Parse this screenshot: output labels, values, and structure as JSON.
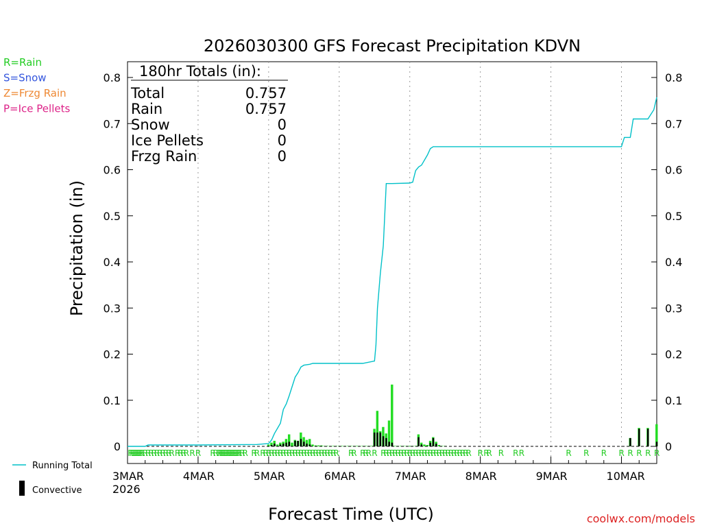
{
  "chart_data": {
    "type": "bar",
    "title": "2026030300 GFS Forecast Precipitation KDVN",
    "xlabel": "Forecast Time (UTC)",
    "ylabel": "Precipitation (in)",
    "ylim": [
      0,
      0.84
    ],
    "xlim_hours": [
      0,
      180
    ],
    "yticks": [
      0,
      0.1,
      0.2,
      0.3,
      0.4,
      0.5,
      0.6,
      0.7,
      0.8
    ],
    "ytick_labels": [
      "0",
      "0.1",
      "0.2",
      "0.3",
      "0.4",
      "0.5",
      "0.6",
      "0.7",
      "0.8"
    ],
    "xticks": [
      {
        "hour": 0,
        "label": "3MAR"
      },
      {
        "hour": 24,
        "label": "4MAR"
      },
      {
        "hour": 48,
        "label": "5MAR"
      },
      {
        "hour": 72,
        "label": "6MAR"
      },
      {
        "hour": 96,
        "label": "7MAR"
      },
      {
        "hour": 120,
        "label": "8MAR"
      },
      {
        "hour": 144,
        "label": "9MAR"
      },
      {
        "hour": 168,
        "label": "10MAR"
      }
    ],
    "year_label": "2026",
    "legend_ptype": [
      {
        "text": "R=Rain",
        "color": "#22cc22"
      },
      {
        "text": "S=Snow",
        "color": "#3355dd"
      },
      {
        "text": "Z=Frzg Rain",
        "color": "#ee8833"
      },
      {
        "text": "P=Ice Pellets",
        "color": "#dd2288"
      }
    ],
    "legend_lines": [
      {
        "text": "Running Total",
        "color": "#00c0c8"
      },
      {
        "text": "Convective",
        "color": "#000000"
      }
    ],
    "totals": {
      "header": "180hr Totals (in):",
      "rows": [
        {
          "label": "Total",
          "value": "0.757"
        },
        {
          "label": "Rain",
          "value": "0.757"
        },
        {
          "label": "Snow",
          "value": "0"
        },
        {
          "label": "Ice Pellets",
          "value": "0"
        },
        {
          "label": "Frzg Rain",
          "value": "0"
        }
      ]
    },
    "credit": "coolwx.com/models",
    "colors": {
      "total_bar": "#22dd22",
      "convective_bar": "#000000",
      "running_total": "#00c0c8",
      "ptype_marker": "#22cc22",
      "grid": "#999999",
      "credit": "#dd2222"
    },
    "series": [
      {
        "name": "Total precipitation (6-hourly bars)",
        "hours": [
          48,
          49,
          50,
          51,
          52,
          53,
          54,
          55,
          56,
          57,
          58,
          59,
          60,
          61,
          62,
          63,
          64,
          65,
          66,
          67,
          68,
          69,
          70,
          71,
          72,
          73,
          74,
          75,
          76,
          77,
          78,
          79,
          80,
          81,
          82,
          83,
          84,
          85,
          86,
          87,
          88,
          89,
          90,
          91,
          92,
          93,
          94,
          95,
          96,
          97,
          98,
          99,
          100,
          101,
          102,
          103,
          104,
          105,
          106,
          107,
          108,
          171,
          174,
          177,
          180
        ],
        "values": [
          0.004,
          0.008,
          0.012,
          0.004,
          0.008,
          0.01,
          0.016,
          0.026,
          0.008,
          0.014,
          0.012,
          0.03,
          0.02,
          0.014,
          0.016,
          0.004,
          0.002,
          0.002,
          0.002,
          0.001,
          0.001,
          0.001,
          0.001,
          0.001,
          0.001,
          0.001,
          0.001,
          0.001,
          0.001,
          0.001,
          0.001,
          0.001,
          0.001,
          0.001,
          0.001,
          0.001,
          0.038,
          0.077,
          0.033,
          0.042,
          0.028,
          0.056,
          0.134,
          0.001,
          0.001,
          0.001,
          0.001,
          0.001,
          0.001,
          0.001,
          0.001,
          0.026,
          0.008,
          0.004,
          0.003,
          0.012,
          0.02,
          0.01,
          0.003,
          0.001,
          0.001,
          0.018,
          0.04,
          0.04,
          0.048
        ]
      },
      {
        "name": "Convective precipitation",
        "hours": [
          49,
          50,
          52,
          53,
          54,
          55,
          57,
          58,
          59,
          60,
          61,
          62,
          84,
          85,
          86,
          87,
          88,
          89,
          90,
          99,
          100,
          103,
          104,
          105,
          171,
          174,
          177,
          180
        ],
        "values": [
          0.003,
          0.006,
          0.004,
          0.006,
          0.008,
          0.01,
          0.012,
          0.012,
          0.016,
          0.01,
          0.006,
          0.004,
          0.03,
          0.03,
          0.03,
          0.022,
          0.018,
          0.01,
          0.008,
          0.02,
          0.004,
          0.008,
          0.018,
          0.006,
          0.018,
          0.038,
          0.038,
          0.01
        ]
      },
      {
        "name": "Running Total",
        "hours": [
          0,
          6,
          7,
          24,
          44,
          46,
          48,
          49,
          50,
          52,
          53,
          54,
          55,
          57,
          58,
          59,
          60,
          62,
          63,
          64,
          72,
          80,
          84,
          84.5,
          85,
          86,
          87,
          88,
          89,
          90,
          96,
          97,
          98,
          99,
          100,
          102,
          103,
          104,
          105,
          108,
          164,
          165,
          167,
          168,
          169,
          171,
          172,
          174,
          175,
          177,
          179,
          180
        ],
        "values": [
          0,
          0,
          0.003,
          0.003,
          0.004,
          0.005,
          0.006,
          0.014,
          0.028,
          0.05,
          0.08,
          0.092,
          0.11,
          0.15,
          0.16,
          0.172,
          0.176,
          0.178,
          0.18,
          0.18,
          0.18,
          0.18,
          0.185,
          0.22,
          0.3,
          0.375,
          0.435,
          0.57,
          0.57,
          0.57,
          0.571,
          0.573,
          0.598,
          0.606,
          0.61,
          0.632,
          0.646,
          0.65,
          0.65,
          0.65,
          0.65,
          0.65,
          0.65,
          0.65,
          0.67,
          0.67,
          0.71,
          0.71,
          0.71,
          0.71,
          0.73,
          0.757
        ]
      }
    ],
    "ptype_markers": {
      "letter": "R",
      "hours": [
        1,
        1.5,
        2,
        2.5,
        3,
        3.5,
        4,
        4.5,
        5,
        6,
        7,
        8,
        9,
        10,
        11,
        12,
        13,
        14,
        15,
        17,
        18,
        19,
        20,
        22,
        24,
        29,
        30,
        31,
        31.5,
        32,
        32.5,
        33,
        33.5,
        34,
        34.5,
        35,
        35.5,
        36,
        36.5,
        37,
        37.5,
        38,
        39,
        40,
        43,
        44,
        46,
        47,
        48,
        49,
        50,
        51,
        52,
        53,
        54,
        55,
        56,
        57,
        58,
        59,
        60,
        61,
        62,
        63,
        64,
        65,
        66,
        67,
        68,
        69,
        70,
        71,
        76,
        77,
        80,
        81,
        82,
        84,
        87,
        88,
        89,
        90,
        91,
        92,
        93,
        94,
        95,
        96,
        97,
        98,
        99,
        100,
        101,
        102,
        103,
        104,
        105,
        106,
        107,
        108,
        109,
        110,
        111,
        112,
        113,
        114,
        115,
        116,
        120,
        122,
        123,
        127,
        132,
        134,
        150,
        156,
        162,
        168,
        171,
        174,
        177,
        180
      ]
    }
  }
}
